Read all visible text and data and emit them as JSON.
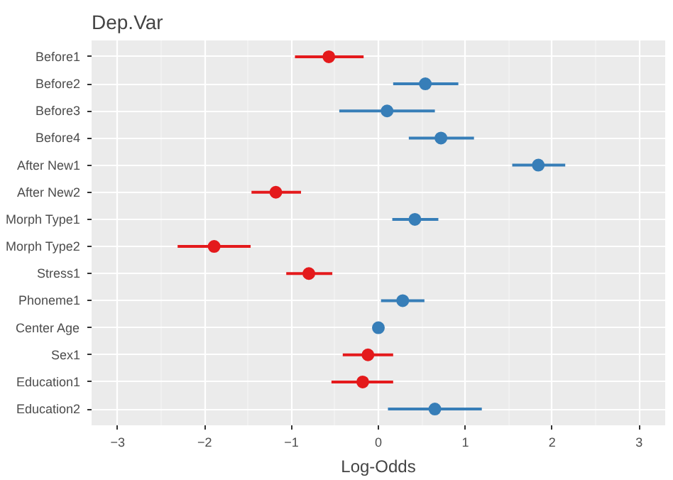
{
  "chart_data": {
    "type": "scatter",
    "orientation": "horizontal",
    "title": "Dep.Var",
    "xlabel": "Log-Odds",
    "categories": [
      "Before1",
      "Before2",
      "Before3",
      "Before4",
      "After New1",
      "After New2",
      "Morph Type1",
      "Morph Type2",
      "Stress1",
      "Phoneme1",
      "Center Age",
      "Sex1",
      "Education1",
      "Education2"
    ],
    "values": [
      -0.57,
      0.54,
      0.1,
      0.72,
      1.84,
      -1.18,
      0.42,
      -1.89,
      -0.8,
      0.28,
      0.0,
      -0.12,
      -0.18,
      0.65
    ],
    "errors": [
      [
        -0.96,
        -0.17
      ],
      [
        0.17,
        0.92
      ],
      [
        -0.45,
        0.65
      ],
      [
        0.35,
        1.1
      ],
      [
        1.54,
        2.15
      ],
      [
        -1.46,
        -0.89
      ],
      [
        0.16,
        0.69
      ],
      [
        -2.31,
        -1.47
      ],
      [
        -1.06,
        -0.53
      ],
      [
        0.03,
        0.53
      ],
      null,
      [
        -0.41,
        0.17
      ],
      [
        -0.54,
        0.17
      ],
      [
        0.11,
        1.19
      ]
    ],
    "colors": [
      "#e41a1c",
      "#377eb8",
      "#377eb8",
      "#377eb8",
      "#377eb8",
      "#e41a1c",
      "#377eb8",
      "#e41a1c",
      "#e41a1c",
      "#377eb8",
      "#377eb8",
      "#e41a1c",
      "#e41a1c",
      "#377eb8"
    ],
    "xlim": [
      -3.3,
      3.3
    ],
    "xticks": [
      -3,
      -2,
      -1,
      0,
      1,
      2,
      3
    ],
    "grid": true,
    "marker": "circle"
  }
}
